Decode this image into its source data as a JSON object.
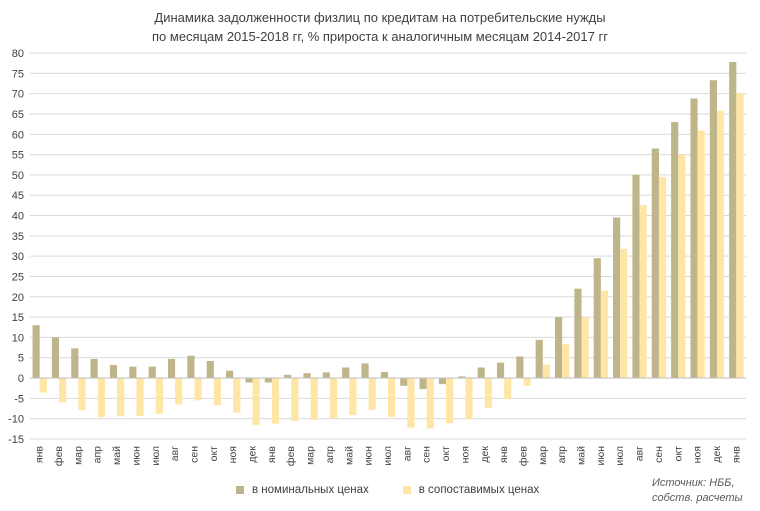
{
  "chart_data": {
    "type": "bar",
    "title_lines": [
      "Динамика задолженности физлиц по кредитам на потребительские нужды",
      "по месяцам 2015-2018 гг, % прироста к аналогичным месяцам 2014-2017 гг"
    ],
    "xlabel": "",
    "ylabel": "",
    "ylim": [
      -15,
      80
    ],
    "yticks": [
      -15,
      -10,
      -5,
      0,
      5,
      10,
      15,
      20,
      25,
      30,
      35,
      40,
      45,
      50,
      55,
      60,
      65,
      70,
      75,
      80
    ],
    "grid": true,
    "legend_position": "bottom",
    "categories": [
      "янв",
      "фев",
      "мар",
      "апр",
      "май",
      "июн",
      "июл",
      "авг",
      "сен",
      "окт",
      "ноя",
      "дек",
      "янв",
      "фев",
      "мар",
      "апр",
      "май",
      "июн",
      "июл",
      "авг",
      "сен",
      "окт",
      "ноя",
      "дек",
      "янв",
      "фев",
      "мар",
      "апр",
      "май",
      "июн",
      "июл",
      "авг",
      "сен",
      "окт",
      "ноя",
      "дек",
      "янв"
    ],
    "series": [
      {
        "name": "в номинальных ценах",
        "color": "#bfb58a",
        "values": [
          13,
          10,
          7.3,
          4.7,
          3.2,
          2.8,
          2.8,
          4.7,
          5.5,
          4.2,
          1.8,
          -1.1,
          -1.1,
          0.8,
          1.2,
          1.4,
          2.6,
          3.6,
          1.5,
          -1.9,
          -2.7,
          -1.5,
          0.4,
          2.6,
          3.8,
          5.3,
          9.4,
          15,
          22,
          29.5,
          39.5,
          50,
          56.5,
          63,
          68.8,
          73.3,
          77.8
        ]
      },
      {
        "name": "в сопоставимых ценах",
        "color": "#ffe6a6",
        "values": [
          -3.6,
          -6,
          -7.9,
          -9.6,
          -9.4,
          -9.3,
          -8.8,
          -6.5,
          -5.5,
          -6.7,
          -8.5,
          -11.6,
          -11.2,
          -10.6,
          -10.3,
          -9.8,
          -9.1,
          -7.8,
          -9.6,
          -12.2,
          -12.4,
          -11.1,
          -10.1,
          -7.3,
          -5.2,
          -1.9,
          3.3,
          8.3,
          15,
          21.5,
          31.8,
          42.6,
          49.5,
          55,
          60.9,
          65.8,
          70.1
        ]
      }
    ]
  },
  "source_lines": [
    "Источник: НББ,",
    "собств. расчеты"
  ]
}
